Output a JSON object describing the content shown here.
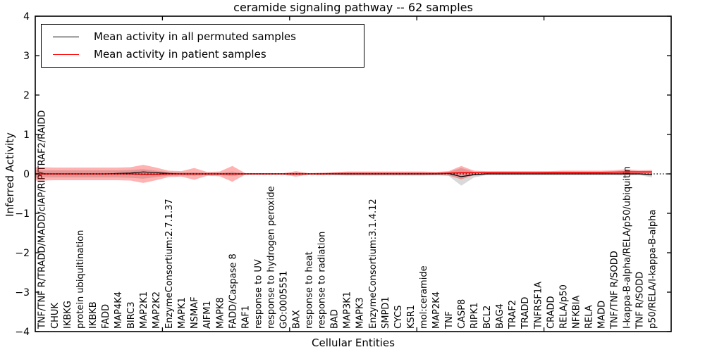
{
  "figure": {
    "title": "ceramide signaling pathway -- 62 samples",
    "xlabel": "Cellular Entities",
    "ylabel": "Inferred Activity"
  },
  "legend": {
    "items": [
      {
        "label": "Mean activity in all permuted samples",
        "color": "#000000"
      },
      {
        "label": "Mean activity in patient samples",
        "color": "#ff0000"
      }
    ]
  },
  "colors": {
    "permuted_line": "#000000",
    "patient_line": "#ff0000",
    "permuted_band": "rgba(0,0,0,0.15)",
    "patient_band": "rgba(255,0,0,0.30)",
    "zero_line": "#000000",
    "frame": "#000000"
  },
  "chart_data": {
    "type": "line",
    "title": "ceramide signaling pathway -- 62 samples",
    "xlabel": "Cellular Entities",
    "ylabel": "Inferred Activity",
    "ylim": [
      -4,
      4
    ],
    "xlim": [
      0,
      50
    ],
    "grid": false,
    "zero_line_style": "dotted",
    "legend_position": "upper left",
    "yticks": [
      4,
      3,
      2,
      1,
      0,
      -1,
      -2,
      -3,
      -4
    ],
    "yticklabels": [
      "4",
      "3",
      "2",
      "1",
      "0",
      "−1",
      "−2",
      "−3",
      "−4"
    ],
    "xticks": [
      10,
      20,
      30,
      40
    ],
    "categories": [
      "TNF/TNF R/TRADD/MADD/cIAP/RIP/TRAF2/RAIDD",
      "CHUK",
      "IKBKG",
      "protein ubiquitination",
      "IKBKB",
      "FADD",
      "MAP4K4",
      "BIRC3",
      "MAP2K1",
      "MAP2K2",
      "EnzymeConsortium:2.7.1.37",
      "MAPK1",
      "NSMAF",
      "AIFM1",
      "MAPK8",
      "FADD/Caspase 8",
      "RAF1",
      "response to UV",
      "response to hydrogen peroxide",
      "GO:0005551",
      "BAX",
      "response to heat",
      "response to radiation",
      "BAD",
      "MAP3K1",
      "MAPK3",
      "EnzymeConsortium:3.1.4.12",
      "SMPD1",
      "CYCS",
      "KSR1",
      "mol:ceramide",
      "MAP2K4",
      "TNF",
      "CASP8",
      "RIPK1",
      "BCL2",
      "BAG4",
      "TRAF2",
      "TRADD",
      "TNFRSF1A",
      "CRADD",
      "RELA/p50",
      "NFKBIA",
      "RELA",
      "MADD",
      "TNF/TNF R/SODD",
      "I-kappa-B-alpha/RELA/p50/ubiquitin",
      "TNF R/SODD",
      "p50/RELA/I-kappa-B-alpha"
    ],
    "series": [
      {
        "name": "Mean activity in all permuted samples",
        "color": "#000000",
        "values": [
          0,
          0,
          0,
          0,
          0,
          0,
          0.01,
          0.02,
          0.05,
          0.03,
          0.01,
          0,
          0,
          0,
          0,
          0,
          0,
          0,
          0,
          0,
          0,
          0,
          0,
          0,
          0,
          0,
          0,
          0,
          0,
          0,
          0,
          0,
          0.01,
          -0.07,
          -0.02,
          0,
          0,
          0,
          0,
          0,
          0,
          0,
          0,
          0,
          0,
          0,
          0,
          0,
          -0.02
        ]
      },
      {
        "name": "Mean activity in patient samples",
        "color": "#ff0000",
        "values": [
          0,
          0,
          0,
          0,
          0,
          0,
          0,
          0,
          -0.01,
          -0.01,
          0,
          0,
          0,
          0,
          0,
          0,
          0,
          0,
          0,
          0,
          0,
          0,
          0,
          0.01,
          0.01,
          0.01,
          0.01,
          0.01,
          0.01,
          0.01,
          0.01,
          0.01,
          0.02,
          0.03,
          0.03,
          0.03,
          0.035,
          0.035,
          0.035,
          0.035,
          0.04,
          0.04,
          0.04,
          0.04,
          0.04,
          0.045,
          0.05,
          0.05,
          0.05
        ]
      }
    ],
    "bands": [
      {
        "name": "permuted-std-band",
        "color": "rgba(0,0,0,0.15)",
        "upper": [
          0.09,
          0.09,
          0.09,
          0.09,
          0.09,
          0.09,
          0.09,
          0.1,
          0.12,
          0.08,
          0.05,
          0.04,
          0.05,
          0.03,
          0.03,
          0.06,
          0.015,
          0.015,
          0.015,
          0.015,
          0.03,
          0.015,
          0.02,
          0.02,
          0.03,
          0.03,
          0.03,
          0.03,
          0.03,
          0.03,
          0.03,
          0.03,
          0.05,
          0.15,
          0.05,
          0.03,
          0.03,
          0.03,
          0.03,
          0.03,
          0.03,
          0.03,
          0.03,
          0.03,
          0.03,
          0.03,
          0.04,
          0.03,
          0.05
        ],
        "lower": [
          -0.09,
          -0.09,
          -0.09,
          -0.09,
          -0.09,
          -0.09,
          -0.09,
          -0.1,
          -0.12,
          -0.08,
          -0.05,
          -0.04,
          -0.05,
          -0.03,
          -0.03,
          -0.06,
          -0.015,
          -0.015,
          -0.015,
          -0.015,
          -0.03,
          -0.015,
          -0.02,
          -0.02,
          -0.03,
          -0.03,
          -0.03,
          -0.03,
          -0.03,
          -0.03,
          -0.03,
          -0.03,
          -0.05,
          -0.3,
          -0.09,
          -0.03,
          -0.03,
          -0.03,
          -0.03,
          -0.03,
          -0.03,
          -0.03,
          -0.03,
          -0.03,
          -0.03,
          -0.03,
          -0.04,
          -0.03,
          -0.09
        ]
      },
      {
        "name": "patient-std-band",
        "color": "rgba(255,0,0,0.30)",
        "upper": [
          0.17,
          0.16,
          0.16,
          0.16,
          0.16,
          0.16,
          0.16,
          0.17,
          0.23,
          0.16,
          0.08,
          0.07,
          0.15,
          0.05,
          0.06,
          0.2,
          0.02,
          0.02,
          0.02,
          0.02,
          0.07,
          0.02,
          0.03,
          0.04,
          0.06,
          0.06,
          0.06,
          0.06,
          0.06,
          0.06,
          0.06,
          0.05,
          0.07,
          0.2,
          0.08,
          0.07,
          0.07,
          0.07,
          0.07,
          0.07,
          0.07,
          0.08,
          0.08,
          0.08,
          0.08,
          0.09,
          0.12,
          0.09,
          0.1
        ],
        "lower": [
          -0.17,
          -0.16,
          -0.16,
          -0.16,
          -0.16,
          -0.16,
          -0.16,
          -0.17,
          -0.23,
          -0.16,
          -0.08,
          -0.07,
          -0.15,
          -0.05,
          -0.06,
          -0.2,
          -0.02,
          -0.02,
          -0.02,
          -0.02,
          -0.07,
          -0.02,
          -0.03,
          -0.03,
          -0.04,
          -0.04,
          -0.04,
          -0.04,
          -0.04,
          -0.04,
          -0.04,
          -0.03,
          -0.04,
          -0.14,
          -0.03,
          -0.01,
          -0.01,
          -0.01,
          -0.01,
          -0.01,
          -0.01,
          -0.01,
          -0.01,
          -0.01,
          -0.01,
          -0.01,
          -0.02,
          -0.01,
          -0.02
        ]
      }
    ]
  }
}
